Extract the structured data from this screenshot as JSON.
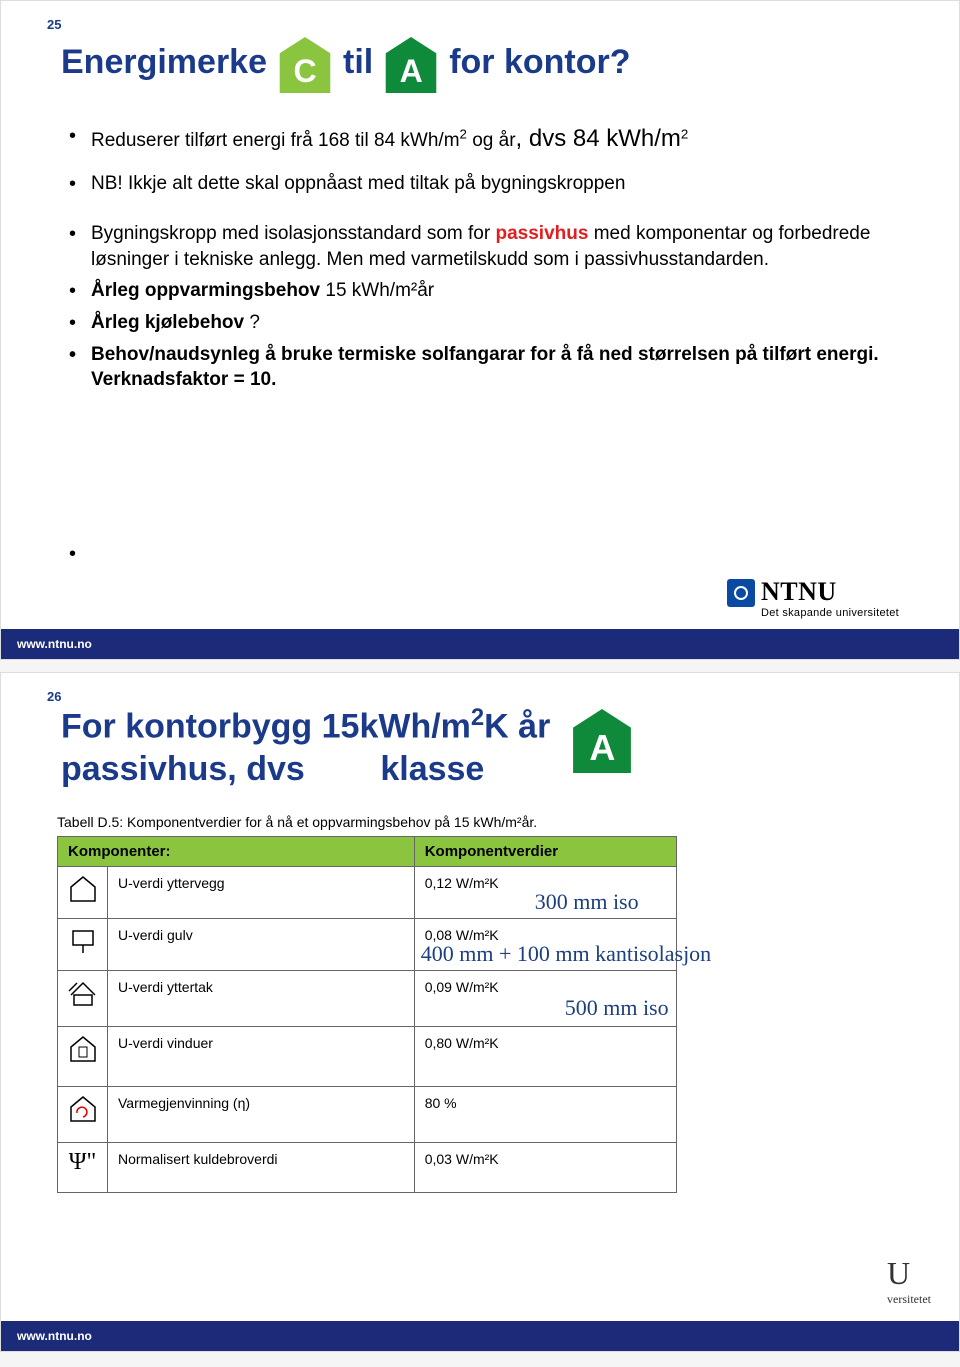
{
  "slide1": {
    "num": "25",
    "title_parts": [
      "Energimerke",
      "til",
      "for kontor?"
    ],
    "badge_c": {
      "letter": "C",
      "fill": "#8bc53f"
    },
    "badge_a": {
      "letter": "A",
      "fill": "#0e8a3a"
    },
    "bullet1_pre": "Reduserer tilført energi frå 168 til 84 kWh/m",
    "bullet1_mid": " og år",
    "bullet1_post": ", dvs 84 kWh/m",
    "bullet2": "NB! Ikkje alt dette skal oppnåast med tiltak på bygningskroppen",
    "bullet3_pre": "Bygningskropp med isolasjonsstandard som for ",
    "bullet3_red": "passivhus",
    "bullet3_post": " med komponentar og forbedrede løsninger i tekniske anlegg. Men med varmetilskudd som i passivhusstandarden.",
    "bullet4_b": "Årleg oppvarmingsbehov ",
    "bullet4_rest": " 15 kWh/m²år",
    "bullet5_b": "Årleg kjølebehov ",
    "bullet5_rest": " ?",
    "bullet6": "Behov/naudsynleg å bruke termiske solfangarar for å få ned størrelsen på tilført energi. Verknadsfaktor = 10.",
    "ntnu_name": "NTNU",
    "ntnu_sub": "Det skapande universitetet",
    "footer": "www.ntnu.no"
  },
  "slide2": {
    "num": "26",
    "title_l1_pre": "For kontorbygg 15kWh/m",
    "title_l1_post": "K år",
    "title_l2": "passivhus, dvs        klasse",
    "badge_a": {
      "letter": "A",
      "fill": "#0e8a3a"
    },
    "caption": "Tabell D.5: Komponentverdier for å nå et oppvarmingsbehov på 15 kWh/m²år.",
    "th1": "Komponenter:",
    "th2": "Komponentverdier",
    "rows": [
      {
        "name": "U-verdi yttervegg",
        "val": "0,12 W/m²K",
        "annot": "300 mm iso",
        "ax": "120px",
        "ay": "22px"
      },
      {
        "name": "U-verdi gulv",
        "val": "0,08 W/m²K",
        "annot": "400 mm + 100 mm kantisolasjon",
        "ax": "6px",
        "ay": "22px"
      },
      {
        "name": "U-verdi yttertak",
        "val": "0,09 W/m²K",
        "annot": "500 mm iso",
        "ax": "150px",
        "ay": "24px"
      },
      {
        "name": "U-verdi vinduer",
        "val": "0,80 W/m²K",
        "annot": "",
        "ax": "",
        "ay": ""
      },
      {
        "name": "Varmegjenvinning (η)",
        "val": "80 %",
        "annot": "",
        "ax": "",
        "ay": ""
      },
      {
        "name": "Normalisert kuldebroverdi",
        "val": "0,03 W/m²K",
        "annot": "",
        "ax": "",
        "ay": ""
      }
    ],
    "logo_u": "U",
    "logo_sub": "versitetet",
    "footer": "www.ntnu.no"
  }
}
